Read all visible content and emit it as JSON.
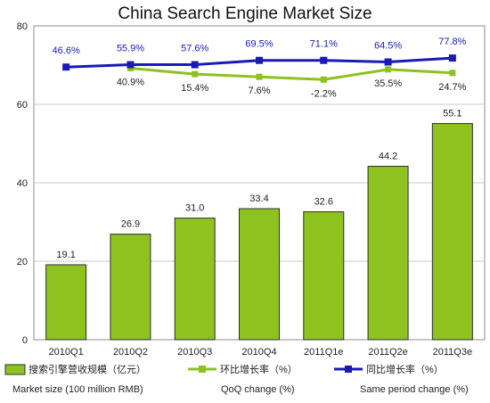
{
  "chart_data": {
    "type": "bar",
    "title": "China Search Engine Market Size",
    "categories": [
      "2010Q1",
      "2010Q2",
      "2010Q3",
      "2010Q4",
      "2011Q1e",
      "2011Q2e",
      "2011Q3e"
    ],
    "ylim": [
      0,
      80
    ],
    "yticks": [
      0,
      20,
      40,
      60,
      80
    ],
    "grid": true,
    "legend_position": "bottom",
    "series": [
      {
        "name": "搜索引擎营收规模（亿元）",
        "name_en": "Market size (100 million RMB)",
        "kind": "bar",
        "color": "#8dc21f",
        "values": [
          19.1,
          26.9,
          31.0,
          33.4,
          32.6,
          44.2,
          55.1
        ],
        "labels": [
          "19.1",
          "26.9",
          "31.0",
          "33.4",
          "32.6",
          "44.2",
          "55.1"
        ]
      },
      {
        "name": "环比增长率（%）",
        "name_en": "QoQ change (%)",
        "kind": "line",
        "color": "#8dc21f",
        "values": [
          null,
          40.9,
          15.4,
          7.6,
          -2.2,
          35.5,
          24.7
        ],
        "plot_y": [
          null,
          69.2,
          67.7,
          67.0,
          66.3,
          68.9,
          68.0
        ],
        "labels": [
          "",
          "40.9%",
          "15.4%",
          "7.6%",
          "-2.2%",
          "35.5%",
          "24.7%"
        ]
      },
      {
        "name": "同比增长率（%）",
        "name_en": "Same period change (%)",
        "kind": "line",
        "color": "#1a1ab8",
        "values": [
          46.6,
          55.9,
          57.6,
          69.5,
          71.1,
          64.5,
          77.8
        ],
        "plot_y": [
          69.5,
          70.1,
          70.1,
          71.2,
          71.2,
          70.8,
          71.8
        ],
        "labels": [
          "46.6%",
          "55.9%",
          "57.6%",
          "69.5%",
          "71.1%",
          "64.5%",
          "77.8%"
        ]
      }
    ]
  }
}
